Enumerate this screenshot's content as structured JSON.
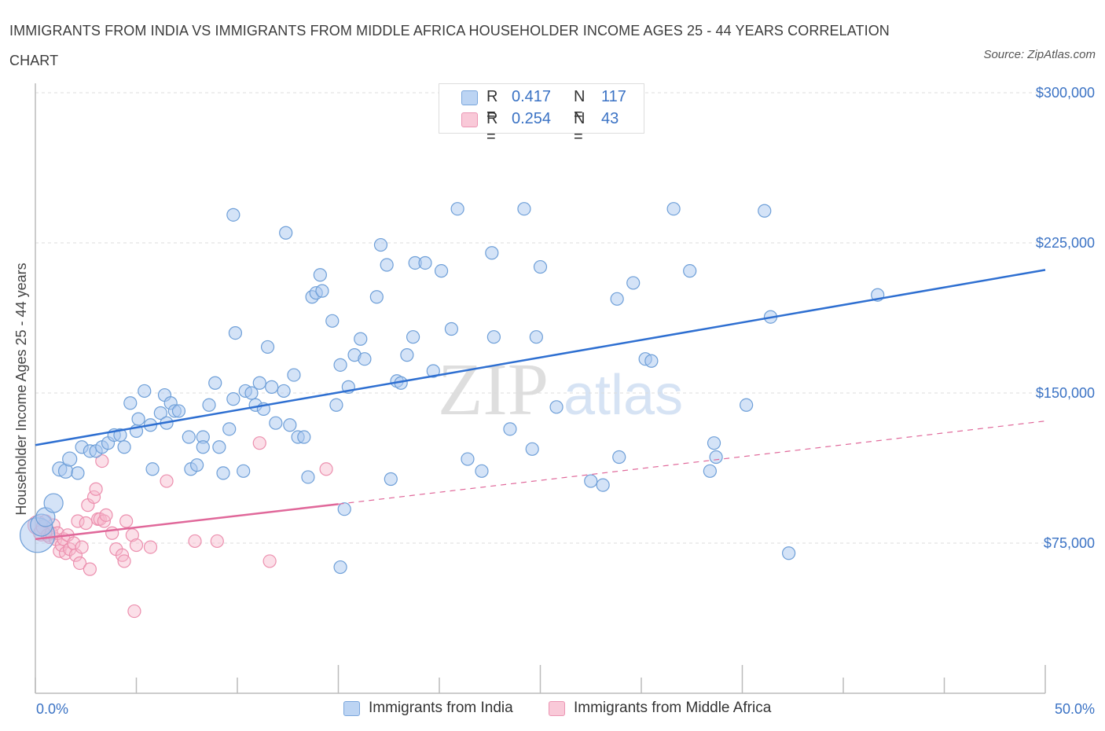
{
  "title": "IMMIGRANTS FROM INDIA VS IMMIGRANTS FROM MIDDLE AFRICA HOUSEHOLDER INCOME AGES 25 - 44 YEARS CORRELATION CHART",
  "source": "Source: ZipAtlas.com",
  "watermark": {
    "zip": "ZIP",
    "atlas": "atlas"
  },
  "legend": {
    "r_label": "R =",
    "n_label": "N =",
    "india": {
      "r": "0.417",
      "n": "117"
    },
    "africa": {
      "r": "0.254",
      "n": "43"
    }
  },
  "colors": {
    "india_fill": "#a9c8f0",
    "india_stroke": "#6e9fd8",
    "india_line": "#2e6fd1",
    "africa_fill": "#f6b8cc",
    "africa_stroke": "#ec8fae",
    "africa_line": "#e0689a",
    "axis_label": "#3a72c4",
    "grid": "#dcdcdc"
  },
  "chart_data": {
    "type": "scatter",
    "title": "IMMIGRANTS FROM INDIA VS IMMIGRANTS FROM MIDDLE AFRICA HOUSEHOLDER INCOME AGES 25 - 44 YEARS CORRELATION CHART",
    "xlabel": "",
    "ylabel": "Householder Income Ages 25 - 44 years",
    "xlim": [
      0,
      50
    ],
    "ylim": [
      0,
      300000
    ],
    "x_tick_labels": [
      "0.0%",
      "50.0%"
    ],
    "y_ticks": [
      75000,
      150000,
      225000,
      300000
    ],
    "y_tick_labels": [
      "$75,000",
      "$150,000",
      "$225,000",
      "$300,000"
    ],
    "grid": true,
    "legend_position": "top-center",
    "series": [
      {
        "name": "Immigrants from India",
        "r": 0.417,
        "n": 117,
        "trend": {
          "x": [
            0,
            50
          ],
          "y": [
            124000,
            211500
          ],
          "style": "solid"
        },
        "points": [
          [
            0.1,
            79000,
            22
          ],
          [
            0.3,
            84000,
            14
          ],
          [
            0.5,
            88000,
            12
          ],
          [
            0.9,
            95000,
            12
          ],
          [
            1.2,
            112000,
            9
          ],
          [
            1.5,
            111000,
            9
          ],
          [
            1.7,
            117000,
            9
          ],
          [
            2.1,
            110000,
            8
          ],
          [
            2.3,
            123000,
            8
          ],
          [
            2.7,
            121000,
            8
          ],
          [
            3.0,
            121000,
            8
          ],
          [
            3.3,
            123000,
            8
          ],
          [
            3.6,
            125000,
            8
          ],
          [
            3.9,
            129000,
            8
          ],
          [
            4.2,
            129000,
            8
          ],
          [
            4.4,
            123000,
            8
          ],
          [
            4.7,
            145000,
            8
          ],
          [
            5.0,
            131000,
            8
          ],
          [
            5.1,
            137000,
            8
          ],
          [
            5.4,
            151000,
            8
          ],
          [
            5.7,
            134000,
            8
          ],
          [
            5.8,
            112000,
            8
          ],
          [
            6.2,
            140000,
            8
          ],
          [
            6.4,
            149000,
            8
          ],
          [
            6.5,
            135000,
            8
          ],
          [
            6.7,
            145000,
            8
          ],
          [
            6.9,
            141000,
            8
          ],
          [
            7.1,
            141000,
            8
          ],
          [
            7.6,
            128000,
            8
          ],
          [
            7.7,
            112000,
            8
          ],
          [
            8.0,
            114000,
            8
          ],
          [
            8.3,
            128000,
            8
          ],
          [
            8.3,
            123000,
            8
          ],
          [
            8.6,
            144000,
            8
          ],
          [
            8.9,
            155000,
            8
          ],
          [
            9.1,
            123000,
            8
          ],
          [
            9.3,
            110000,
            8
          ],
          [
            9.6,
            132000,
            8
          ],
          [
            9.8,
            147000,
            8
          ],
          [
            9.9,
            180000,
            8
          ],
          [
            10.3,
            111000,
            8
          ],
          [
            10.4,
            151000,
            8
          ],
          [
            10.7,
            150000,
            8
          ],
          [
            10.9,
            144000,
            8
          ],
          [
            11.1,
            155000,
            8
          ],
          [
            11.3,
            142000,
            8
          ],
          [
            11.5,
            173000,
            8
          ],
          [
            11.7,
            153000,
            8
          ],
          [
            11.9,
            135000,
            8
          ],
          [
            12.3,
            151000,
            8
          ],
          [
            12.4,
            230000,
            8
          ],
          [
            12.6,
            134000,
            8
          ],
          [
            12.8,
            159000,
            8
          ],
          [
            13.0,
            128000,
            8
          ],
          [
            13.3,
            128000,
            8
          ],
          [
            13.5,
            108000,
            8
          ],
          [
            13.7,
            198000,
            8
          ],
          [
            13.9,
            200000,
            8
          ],
          [
            14.1,
            209000,
            8
          ],
          [
            14.2,
            201000,
            8
          ],
          [
            14.7,
            186000,
            8
          ],
          [
            14.9,
            144000,
            8
          ],
          [
            15.1,
            164000,
            8
          ],
          [
            15.5,
            153000,
            8
          ],
          [
            15.8,
            169000,
            8
          ],
          [
            16.1,
            177000,
            8
          ],
          [
            16.3,
            167000,
            8
          ],
          [
            16.9,
            198000,
            8
          ],
          [
            17.1,
            224000,
            8
          ],
          [
            17.4,
            214000,
            8
          ],
          [
            17.6,
            107000,
            8
          ],
          [
            17.9,
            156000,
            8
          ],
          [
            18.1,
            155000,
            8
          ],
          [
            18.4,
            169000,
            8
          ],
          [
            18.7,
            178000,
            8
          ],
          [
            18.8,
            215000,
            8
          ],
          [
            19.3,
            215000,
            8
          ],
          [
            19.7,
            161000,
            8
          ],
          [
            20.1,
            211000,
            8
          ],
          [
            20.6,
            182000,
            8
          ],
          [
            20.9,
            242000,
            8
          ],
          [
            21.4,
            117000,
            8
          ],
          [
            22.1,
            111000,
            8
          ],
          [
            22.6,
            220000,
            8
          ],
          [
            22.7,
            178000,
            8
          ],
          [
            23.5,
            132000,
            8
          ],
          [
            24.2,
            242000,
            8
          ],
          [
            24.6,
            122000,
            8
          ],
          [
            24.8,
            178000,
            8
          ],
          [
            25.0,
            213000,
            8
          ],
          [
            25.8,
            143000,
            8
          ],
          [
            27.5,
            106000,
            8
          ],
          [
            28.1,
            104000,
            8
          ],
          [
            28.8,
            197000,
            8
          ],
          [
            28.9,
            118000,
            8
          ],
          [
            29.6,
            205000,
            8
          ],
          [
            30.2,
            167000,
            8
          ],
          [
            30.5,
            166000,
            8
          ],
          [
            31.6,
            242000,
            8
          ],
          [
            32.4,
            211000,
            8
          ],
          [
            33.4,
            111000,
            8
          ],
          [
            33.6,
            125000,
            8
          ],
          [
            33.7,
            118000,
            8
          ],
          [
            35.2,
            144000,
            8
          ],
          [
            36.1,
            241000,
            8
          ],
          [
            36.4,
            188000,
            8
          ],
          [
            37.3,
            70000,
            8
          ],
          [
            41.7,
            199000,
            8
          ],
          [
            15.3,
            92000,
            8
          ],
          [
            15.1,
            63000,
            8
          ],
          [
            9.8,
            239000,
            8
          ]
        ]
      },
      {
        "name": "Immigrants from Middle Africa",
        "r": 0.254,
        "n": 43,
        "trend": {
          "x": [
            0,
            15
          ],
          "y": [
            77000,
            94500
          ],
          "style": "solid"
        },
        "trend_extension": {
          "x": [
            15,
            50
          ],
          "y": [
            94500,
            136000
          ],
          "style": "dashed"
        },
        "points": [
          [
            0.1,
            84000,
            12
          ],
          [
            0.3,
            80000,
            10
          ],
          [
            0.4,
            83000,
            9
          ],
          [
            0.5,
            86000,
            8
          ],
          [
            0.6,
            79000,
            8
          ],
          [
            0.7,
            78000,
            8
          ],
          [
            0.8,
            80000,
            8
          ],
          [
            0.9,
            84000,
            8
          ],
          [
            1.0,
            77000,
            8
          ],
          [
            1.1,
            80000,
            8
          ],
          [
            1.2,
            71000,
            8
          ],
          [
            1.3,
            74000,
            8
          ],
          [
            1.4,
            77000,
            8
          ],
          [
            1.5,
            70000,
            8
          ],
          [
            1.6,
            79000,
            8
          ],
          [
            1.7,
            72000,
            8
          ],
          [
            1.9,
            75000,
            8
          ],
          [
            2.0,
            69000,
            8
          ],
          [
            2.1,
            86000,
            8
          ],
          [
            2.2,
            65000,
            8
          ],
          [
            2.3,
            73000,
            8
          ],
          [
            2.5,
            85000,
            8
          ],
          [
            2.6,
            94000,
            8
          ],
          [
            2.7,
            62000,
            8
          ],
          [
            2.9,
            98000,
            8
          ],
          [
            3.0,
            102000,
            8
          ],
          [
            3.1,
            87000,
            8
          ],
          [
            3.2,
            87000,
            8
          ],
          [
            3.3,
            116000,
            8
          ],
          [
            3.4,
            86000,
            8
          ],
          [
            3.5,
            89000,
            8
          ],
          [
            3.8,
            80000,
            8
          ],
          [
            4.0,
            72000,
            8
          ],
          [
            4.3,
            69000,
            8
          ],
          [
            4.4,
            66000,
            8
          ],
          [
            4.5,
            86000,
            8
          ],
          [
            4.8,
            79000,
            8
          ],
          [
            4.9,
            41000,
            8
          ],
          [
            5.0,
            74000,
            8
          ],
          [
            5.7,
            73000,
            8
          ],
          [
            6.5,
            106000,
            8
          ],
          [
            7.9,
            76000,
            8
          ],
          [
            9.0,
            76000,
            8
          ],
          [
            11.1,
            125000,
            8
          ],
          [
            11.6,
            66000,
            8
          ],
          [
            14.4,
            112000,
            8
          ]
        ]
      }
    ]
  },
  "bottom_legend": {
    "india": "Immigrants from India",
    "africa": "Immigrants from Middle Africa"
  }
}
